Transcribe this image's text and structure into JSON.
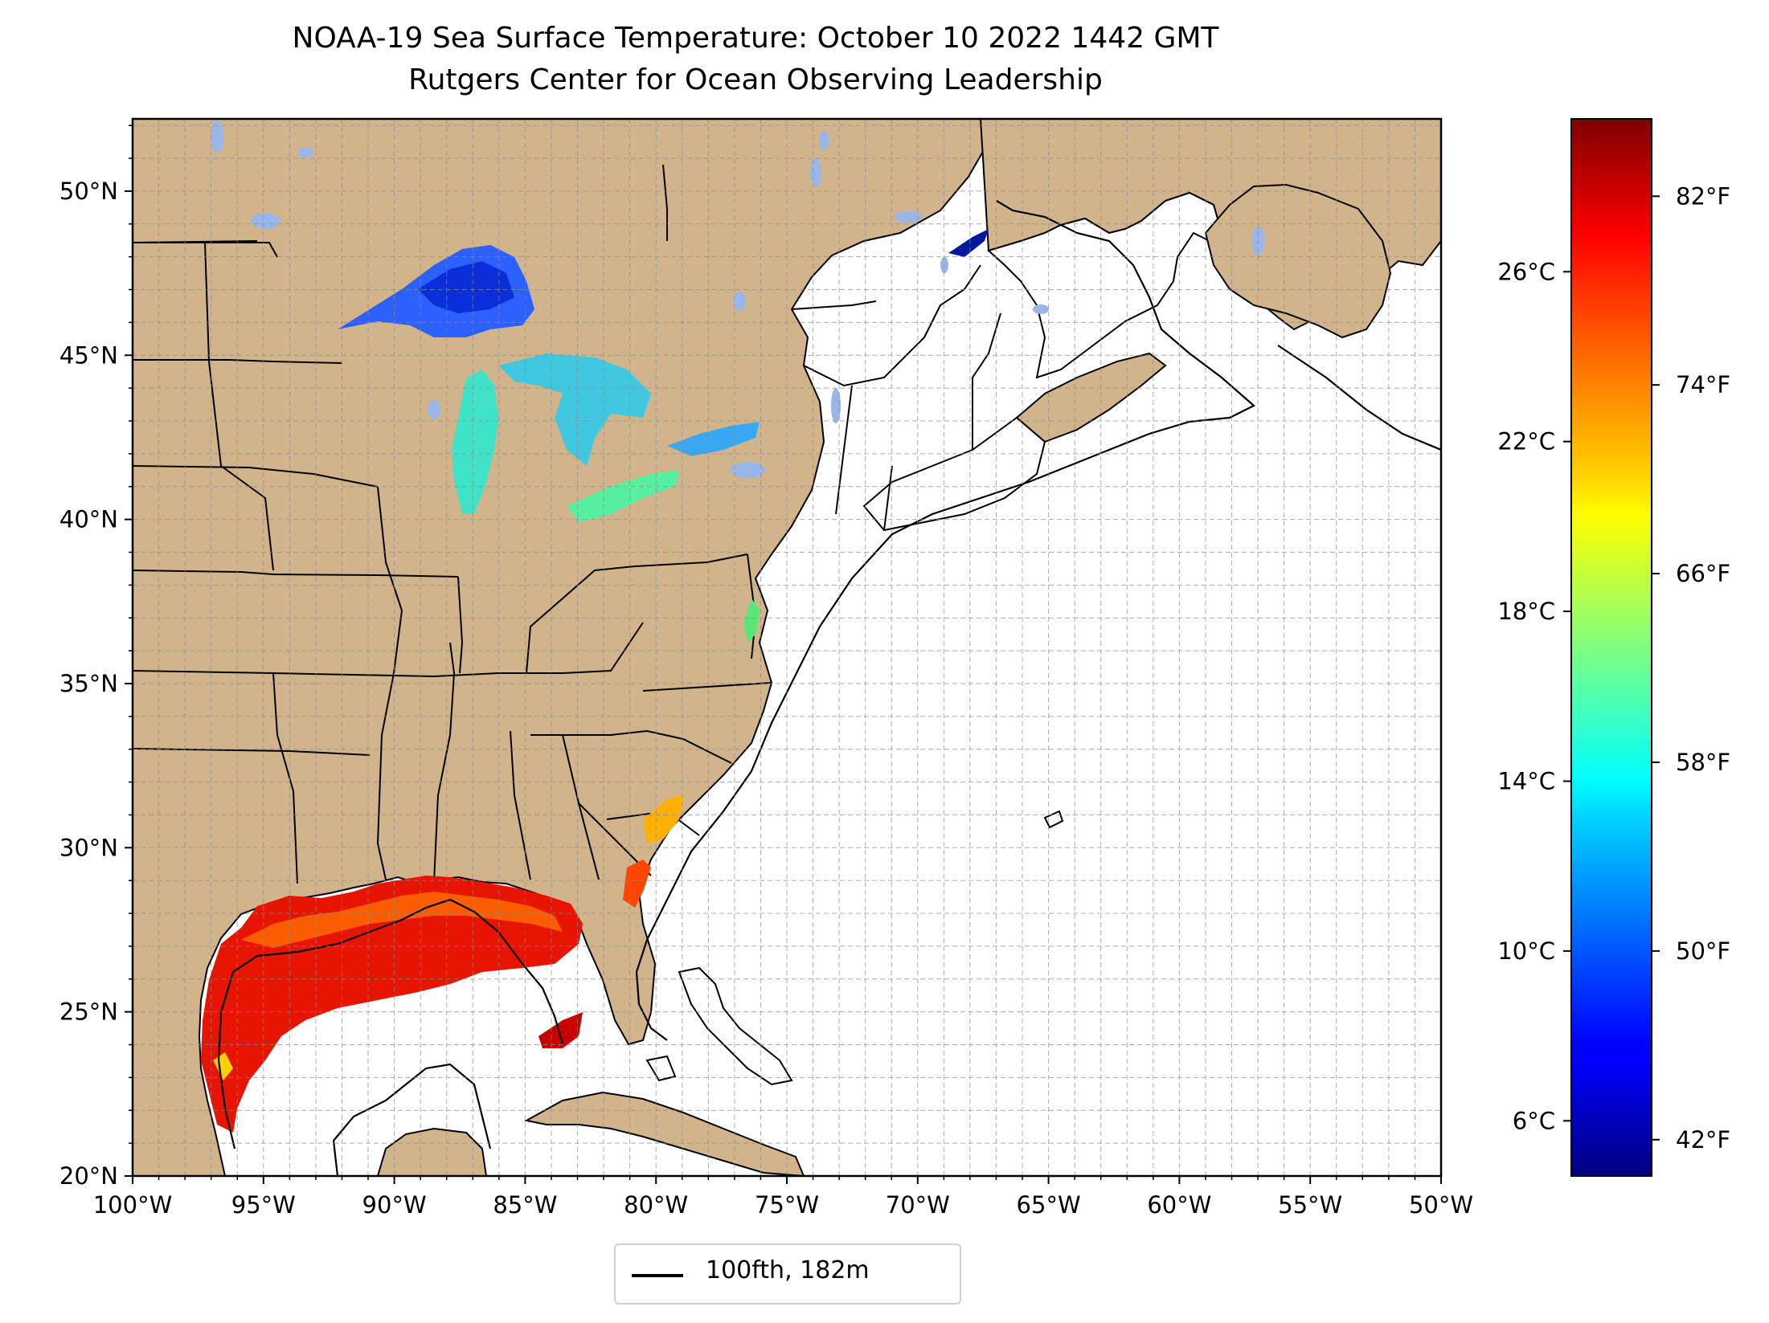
{
  "title_line1": "NOAA-19 Sea Surface Temperature: October 10 2022 1442 GMT",
  "title_line2": "Rutgers Center for Ocean Observing Leadership",
  "map": {
    "lon_ticks": [
      "100°W",
      "95°W",
      "90°W",
      "85°W",
      "80°W",
      "75°W",
      "70°W",
      "65°W",
      "60°W",
      "55°W",
      "50°W"
    ],
    "lat_ticks": [
      "20°N",
      "25°N",
      "30°N",
      "35°N",
      "40°N",
      "45°N",
      "50°N"
    ],
    "extent": {
      "lon": [
        -100,
        -50
      ],
      "lat": [
        20,
        52.2
      ]
    },
    "gridlines": "dashed, 1 degree",
    "land_color": "#d2b48c",
    "water_no_data_color": "#ffffff",
    "inland_lakes_color": "#9ab6e8",
    "contour_label": "100fth, 182m"
  },
  "colorbar": {
    "colormap": "jet",
    "fahrenheit_ticks": [
      "42°F",
      "50°F",
      "58°F",
      "66°F",
      "74°F",
      "82°F"
    ],
    "celsius_ticks": [
      "6°C",
      "10°C",
      "14°C",
      "18°C",
      "22°C",
      "26°C"
    ],
    "range_c": [
      4.7,
      29.6
    ]
  },
  "legend": {
    "label": "100fth, 182m"
  }
}
